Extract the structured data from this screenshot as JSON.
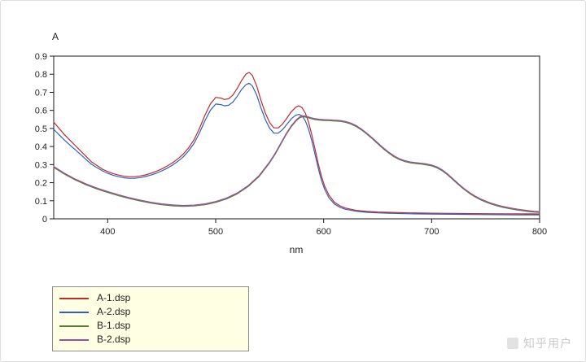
{
  "page": {
    "watermark": "知乎用户"
  },
  "chart_data": {
    "type": "line",
    "title": "",
    "xlabel": "nm",
    "ylabel": "A",
    "xlim": [
      350,
      800
    ],
    "ylim": [
      0,
      0.9
    ],
    "x_ticks": [
      400,
      500,
      600,
      700,
      800
    ],
    "x_tick_labels": [
      "400",
      "500",
      "600",
      "700",
      "800"
    ],
    "y_ticks": [
      0,
      0.1,
      0.2,
      0.3,
      0.4,
      0.5,
      0.6,
      0.7,
      0.8,
      0.9
    ],
    "y_tick_labels": [
      "0",
      "0.1",
      "0.2",
      "0.3",
      "0.4",
      "0.5",
      "0.6",
      "0.7",
      "0.8",
      "0.9"
    ],
    "grid": false,
    "legend_position": "bottom-left",
    "series": [
      {
        "name": "A-1.dsp",
        "color": "#c02a2a",
        "points": [
          [
            350,
            0.535
          ],
          [
            355,
            0.5
          ],
          [
            360,
            0.465
          ],
          [
            365,
            0.435
          ],
          [
            370,
            0.405
          ],
          [
            375,
            0.375
          ],
          [
            380,
            0.345
          ],
          [
            385,
            0.315
          ],
          [
            390,
            0.295
          ],
          [
            395,
            0.275
          ],
          [
            400,
            0.262
          ],
          [
            405,
            0.25
          ],
          [
            410,
            0.242
          ],
          [
            415,
            0.236
          ],
          [
            420,
            0.233
          ],
          [
            425,
            0.233
          ],
          [
            430,
            0.237
          ],
          [
            435,
            0.243
          ],
          [
            440,
            0.252
          ],
          [
            445,
            0.263
          ],
          [
            450,
            0.276
          ],
          [
            455,
            0.292
          ],
          [
            460,
            0.31
          ],
          [
            465,
            0.332
          ],
          [
            470,
            0.358
          ],
          [
            475,
            0.393
          ],
          [
            480,
            0.438
          ],
          [
            485,
            0.5
          ],
          [
            490,
            0.572
          ],
          [
            495,
            0.635
          ],
          [
            500,
            0.672
          ],
          [
            505,
            0.668
          ],
          [
            508,
            0.66
          ],
          [
            512,
            0.664
          ],
          [
            516,
            0.685
          ],
          [
            520,
            0.722
          ],
          [
            524,
            0.765
          ],
          [
            528,
            0.8
          ],
          [
            531,
            0.81
          ],
          [
            534,
            0.793
          ],
          [
            538,
            0.735
          ],
          [
            542,
            0.655
          ],
          [
            546,
            0.585
          ],
          [
            550,
            0.532
          ],
          [
            554,
            0.503
          ],
          [
            558,
            0.503
          ],
          [
            562,
            0.525
          ],
          [
            566,
            0.558
          ],
          [
            570,
            0.592
          ],
          [
            574,
            0.617
          ],
          [
            577,
            0.625
          ],
          [
            580,
            0.615
          ],
          [
            583,
            0.585
          ],
          [
            586,
            0.535
          ],
          [
            589,
            0.465
          ],
          [
            592,
            0.385
          ],
          [
            595,
            0.305
          ],
          [
            598,
            0.235
          ],
          [
            601,
            0.18
          ],
          [
            605,
            0.13
          ],
          [
            610,
            0.092
          ],
          [
            615,
            0.072
          ],
          [
            620,
            0.06
          ],
          [
            630,
            0.047
          ],
          [
            640,
            0.041
          ],
          [
            650,
            0.038
          ],
          [
            660,
            0.036
          ],
          [
            680,
            0.033
          ],
          [
            700,
            0.031
          ],
          [
            720,
            0.03
          ],
          [
            740,
            0.029
          ],
          [
            760,
            0.028
          ],
          [
            780,
            0.028
          ],
          [
            800,
            0.027
          ]
        ]
      },
      {
        "name": "A-2.dsp",
        "color": "#2f5fc0",
        "points": [
          [
            350,
            0.495
          ],
          [
            355,
            0.465
          ],
          [
            360,
            0.435
          ],
          [
            365,
            0.408
          ],
          [
            370,
            0.382
          ],
          [
            375,
            0.355
          ],
          [
            380,
            0.328
          ],
          [
            385,
            0.302
          ],
          [
            390,
            0.283
          ],
          [
            395,
            0.266
          ],
          [
            400,
            0.252
          ],
          [
            405,
            0.241
          ],
          [
            410,
            0.233
          ],
          [
            415,
            0.227
          ],
          [
            420,
            0.224
          ],
          [
            425,
            0.224
          ],
          [
            430,
            0.228
          ],
          [
            435,
            0.234
          ],
          [
            440,
            0.242
          ],
          [
            445,
            0.252
          ],
          [
            450,
            0.265
          ],
          [
            455,
            0.28
          ],
          [
            460,
            0.297
          ],
          [
            465,
            0.318
          ],
          [
            470,
            0.343
          ],
          [
            475,
            0.376
          ],
          [
            480,
            0.418
          ],
          [
            485,
            0.475
          ],
          [
            490,
            0.542
          ],
          [
            495,
            0.6
          ],
          [
            500,
            0.635
          ],
          [
            505,
            0.632
          ],
          [
            508,
            0.625
          ],
          [
            512,
            0.628
          ],
          [
            516,
            0.646
          ],
          [
            520,
            0.678
          ],
          [
            524,
            0.715
          ],
          [
            528,
            0.742
          ],
          [
            531,
            0.75
          ],
          [
            534,
            0.735
          ],
          [
            538,
            0.685
          ],
          [
            542,
            0.613
          ],
          [
            546,
            0.549
          ],
          [
            550,
            0.501
          ],
          [
            554,
            0.474
          ],
          [
            558,
            0.474
          ],
          [
            562,
            0.494
          ],
          [
            566,
            0.524
          ],
          [
            570,
            0.553
          ],
          [
            574,
            0.573
          ],
          [
            577,
            0.578
          ],
          [
            580,
            0.57
          ],
          [
            583,
            0.543
          ],
          [
            586,
            0.497
          ],
          [
            589,
            0.432
          ],
          [
            592,
            0.356
          ],
          [
            595,
            0.28
          ],
          [
            598,
            0.213
          ],
          [
            601,
            0.162
          ],
          [
            605,
            0.115
          ],
          [
            610,
            0.082
          ],
          [
            615,
            0.064
          ],
          [
            620,
            0.053
          ],
          [
            630,
            0.042
          ],
          [
            640,
            0.036
          ],
          [
            650,
            0.033
          ],
          [
            660,
            0.031
          ],
          [
            680,
            0.028
          ],
          [
            700,
            0.026
          ],
          [
            720,
            0.025
          ],
          [
            740,
            0.024
          ],
          [
            760,
            0.023
          ],
          [
            780,
            0.022
          ],
          [
            800,
            0.022
          ]
        ]
      },
      {
        "name": "B-1.dsp",
        "color": "#5a7a3a",
        "points": [
          [
            350,
            0.285
          ],
          [
            360,
            0.247
          ],
          [
            370,
            0.215
          ],
          [
            380,
            0.188
          ],
          [
            390,
            0.165
          ],
          [
            400,
            0.146
          ],
          [
            410,
            0.128
          ],
          [
            420,
            0.112
          ],
          [
            430,
            0.099
          ],
          [
            440,
            0.087
          ],
          [
            450,
            0.078
          ],
          [
            460,
            0.072
          ],
          [
            470,
            0.069
          ],
          [
            480,
            0.071
          ],
          [
            490,
            0.078
          ],
          [
            500,
            0.091
          ],
          [
            510,
            0.11
          ],
          [
            520,
            0.138
          ],
          [
            530,
            0.178
          ],
          [
            540,
            0.233
          ],
          [
            550,
            0.31
          ],
          [
            555,
            0.357
          ],
          [
            560,
            0.41
          ],
          [
            565,
            0.463
          ],
          [
            570,
            0.51
          ],
          [
            575,
            0.545
          ],
          [
            578,
            0.56
          ],
          [
            581,
            0.565
          ],
          [
            584,
            0.562
          ],
          [
            588,
            0.555
          ],
          [
            592,
            0.549
          ],
          [
            596,
            0.546
          ],
          [
            600,
            0.544
          ],
          [
            605,
            0.543
          ],
          [
            610,
            0.541
          ],
          [
            615,
            0.539
          ],
          [
            620,
            0.534
          ],
          [
            625,
            0.525
          ],
          [
            630,
            0.511
          ],
          [
            635,
            0.492
          ],
          [
            640,
            0.469
          ],
          [
            645,
            0.443
          ],
          [
            650,
            0.416
          ],
          [
            655,
            0.389
          ],
          [
            660,
            0.365
          ],
          [
            665,
            0.344
          ],
          [
            670,
            0.328
          ],
          [
            675,
            0.317
          ],
          [
            680,
            0.31
          ],
          [
            685,
            0.306
          ],
          [
            690,
            0.303
          ],
          [
            695,
            0.299
          ],
          [
            700,
            0.293
          ],
          [
            705,
            0.282
          ],
          [
            710,
            0.265
          ],
          [
            715,
            0.242
          ],
          [
            720,
            0.215
          ],
          [
            725,
            0.188
          ],
          [
            730,
            0.163
          ],
          [
            735,
            0.141
          ],
          [
            740,
            0.122
          ],
          [
            745,
            0.106
          ],
          [
            750,
            0.093
          ],
          [
            755,
            0.082
          ],
          [
            760,
            0.073
          ],
          [
            765,
            0.065
          ],
          [
            770,
            0.059
          ],
          [
            775,
            0.053
          ],
          [
            780,
            0.048
          ],
          [
            785,
            0.044
          ],
          [
            790,
            0.04
          ],
          [
            795,
            0.037
          ],
          [
            800,
            0.035
          ]
        ]
      },
      {
        "name": "B-2.dsp",
        "color": "#9c4f9c",
        "points": [
          [
            350,
            0.29
          ],
          [
            360,
            0.252
          ],
          [
            370,
            0.22
          ],
          [
            380,
            0.193
          ],
          [
            390,
            0.17
          ],
          [
            400,
            0.151
          ],
          [
            410,
            0.133
          ],
          [
            420,
            0.117
          ],
          [
            430,
            0.104
          ],
          [
            440,
            0.092
          ],
          [
            450,
            0.083
          ],
          [
            460,
            0.077
          ],
          [
            470,
            0.074
          ],
          [
            480,
            0.076
          ],
          [
            490,
            0.083
          ],
          [
            500,
            0.096
          ],
          [
            510,
            0.115
          ],
          [
            520,
            0.143
          ],
          [
            530,
            0.183
          ],
          [
            540,
            0.238
          ],
          [
            550,
            0.315
          ],
          [
            555,
            0.362
          ],
          [
            560,
            0.415
          ],
          [
            565,
            0.468
          ],
          [
            570,
            0.515
          ],
          [
            575,
            0.55
          ],
          [
            578,
            0.565
          ],
          [
            581,
            0.57
          ],
          [
            584,
            0.567
          ],
          [
            588,
            0.56
          ],
          [
            592,
            0.554
          ],
          [
            596,
            0.551
          ],
          [
            600,
            0.549
          ],
          [
            605,
            0.548
          ],
          [
            610,
            0.546
          ],
          [
            615,
            0.544
          ],
          [
            620,
            0.539
          ],
          [
            625,
            0.53
          ],
          [
            630,
            0.516
          ],
          [
            635,
            0.497
          ],
          [
            640,
            0.474
          ],
          [
            645,
            0.448
          ],
          [
            650,
            0.421
          ],
          [
            655,
            0.394
          ],
          [
            660,
            0.37
          ],
          [
            665,
            0.349
          ],
          [
            670,
            0.333
          ],
          [
            675,
            0.322
          ],
          [
            680,
            0.315
          ],
          [
            685,
            0.311
          ],
          [
            690,
            0.308
          ],
          [
            695,
            0.304
          ],
          [
            700,
            0.298
          ],
          [
            705,
            0.287
          ],
          [
            710,
            0.27
          ],
          [
            715,
            0.247
          ],
          [
            720,
            0.22
          ],
          [
            725,
            0.193
          ],
          [
            730,
            0.168
          ],
          [
            735,
            0.146
          ],
          [
            740,
            0.127
          ],
          [
            745,
            0.111
          ],
          [
            750,
            0.098
          ],
          [
            755,
            0.087
          ],
          [
            760,
            0.078
          ],
          [
            765,
            0.07
          ],
          [
            770,
            0.064
          ],
          [
            775,
            0.058
          ],
          [
            780,
            0.053
          ],
          [
            785,
            0.049
          ],
          [
            790,
            0.045
          ],
          [
            795,
            0.042
          ],
          [
            800,
            0.04
          ]
        ]
      }
    ]
  }
}
